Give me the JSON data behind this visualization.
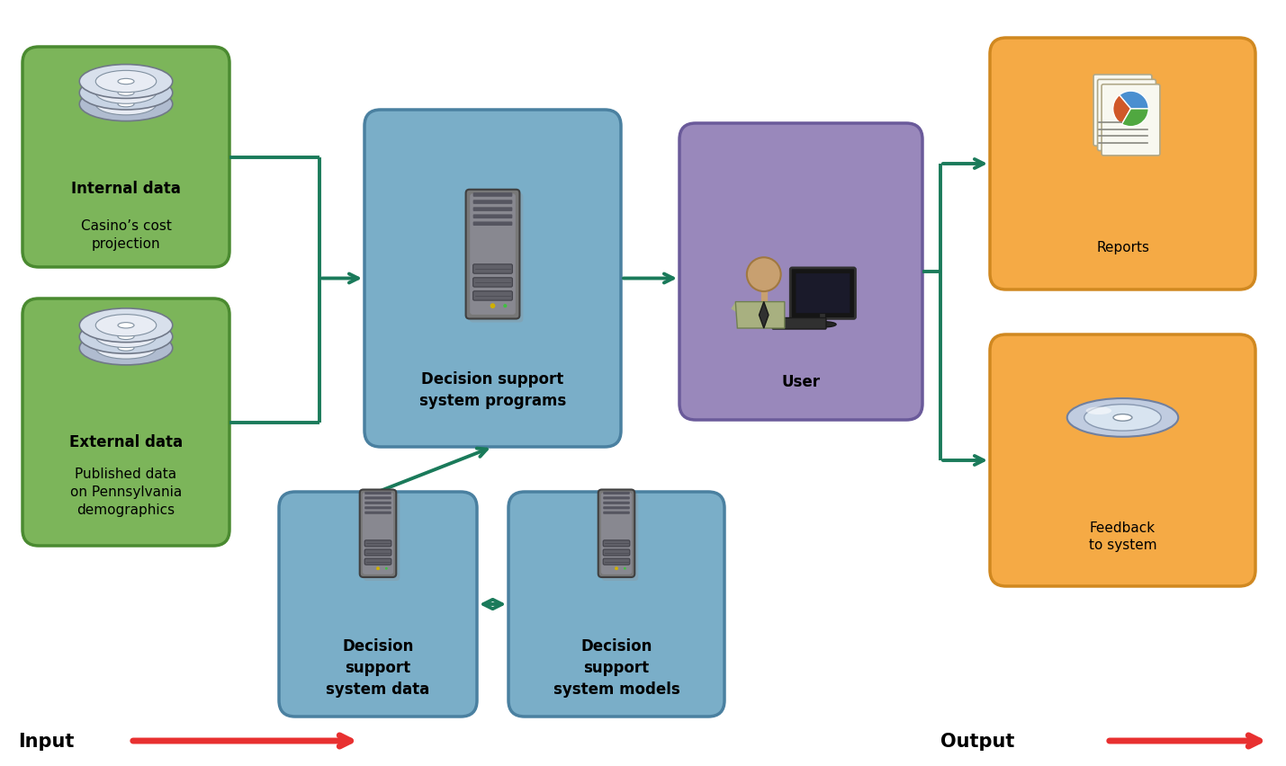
{
  "bg_color": "#ffffff",
  "green_box_color": "#7cb55a",
  "green_box_edge": "#4a8a30",
  "blue_box_color": "#7aaec8",
  "blue_box_edge": "#4a80a0",
  "purple_box_color": "#9988bb",
  "purple_box_edge": "#6a5a9a",
  "orange_box_color": "#f5aa45",
  "orange_box_edge": "#d08820",
  "teal_arrow": "#1a7a5a",
  "red_arrow": "#e83030",
  "internal_data_bold": "Internal data",
  "internal_data_text": "Casino’s cost\nprojection",
  "external_data_bold": "External data",
  "external_data_text": "Published data\non Pennsylvania\ndemographics",
  "dss_programs": "Decision support\nsystem programs",
  "dss_data": "Decision\nsupport\nsystem data",
  "dss_models": "Decision\nsupport\nsystem models",
  "user_label": "User",
  "reports_label": "Reports",
  "feedback_label": "Feedback\nto system",
  "input_label": "Input",
  "output_label": "Output"
}
